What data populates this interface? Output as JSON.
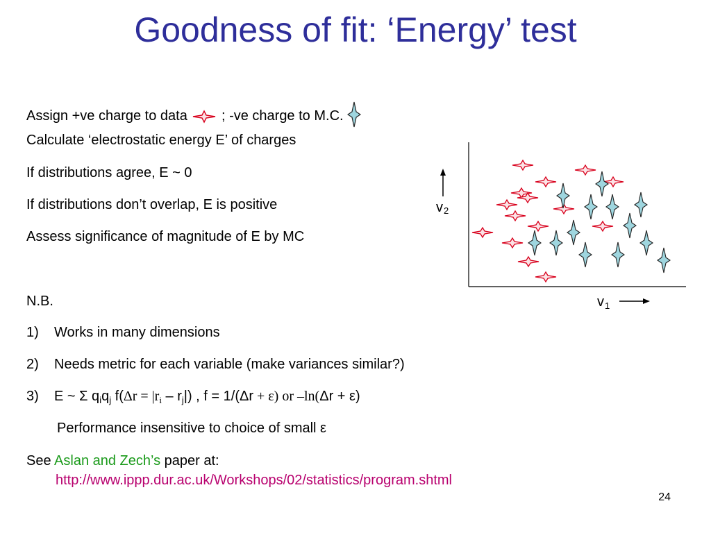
{
  "title": "Goodness of fit: ‘Energy’ test",
  "lines": {
    "l1a": "Assign +ve charge to data",
    "l1b": "; -ve charge to M.C.",
    "l2": "Calculate ‘electrostatic energy E’ of charges",
    "l3": "If distributions agree, E ~ 0",
    "l4": "If distributions don’t overlap, E is positive",
    "l5": "Assess significance of magnitude of E by MC",
    "nb": "N.B.",
    "i1n": "1)",
    "i1": "Works in many dimensions",
    "i2n": "2)",
    "i2": "Needs metric for each variable (make variances similar?)",
    "i3n": "3)",
    "i3a": "E ~ Σ q",
    "i3sub_i": "i",
    "i3b": "q",
    "i3sub_j": "j",
    "i3c": " f(",
    "i3d": "Δr = |r",
    "i3sub_i2": "i",
    "i3e": " – r",
    "i3sub_j2": "j",
    "i3f": "|) ,    f = 1/(Δr",
    "i3g": " + ε) or –ln(",
    "i3h": "Δr + ε)",
    "perf": "Performance insensitive to choice of small ε",
    "see": "See ",
    "authors": "Aslan and Zech’s",
    "paper": " paper at:",
    "url": "http://www.ippp.dur.ac.uk/Workshops/02/statistics/program.shtml"
  },
  "plot": {
    "ylabel": "v",
    "ysub": "2",
    "xlabel": "v",
    "xsub": "1",
    "data_color": "#d8001c",
    "mc_color": "#9fd6df"
  },
  "page_number": "24"
}
